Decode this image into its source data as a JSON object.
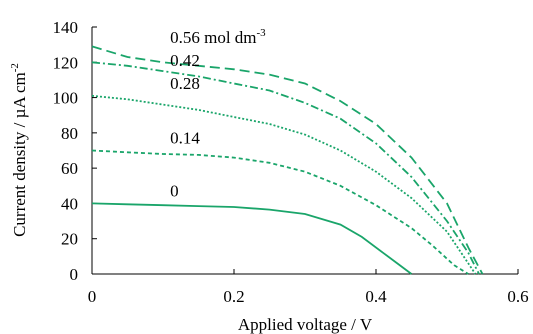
{
  "chart_data": {
    "type": "line",
    "xlabel": "Applied voltage / V",
    "ylabel": "Current density / µA cm",
    "ylabel_sup": "-2",
    "xlim": [
      0,
      0.6
    ],
    "ylim": [
      0,
      140
    ],
    "x_ticks": [
      "0",
      "0.2",
      "0.4",
      "0.6"
    ],
    "y_ticks": [
      "0",
      "20",
      "40",
      "60",
      "80",
      "100",
      "120",
      "140"
    ],
    "grid": false,
    "line_color": "#1aa56a",
    "series": [
      {
        "label": "0",
        "dash": "solid",
        "points": [
          [
            0,
            40
          ],
          [
            0.05,
            39.5
          ],
          [
            0.1,
            39
          ],
          [
            0.15,
            38.5
          ],
          [
            0.2,
            38
          ],
          [
            0.25,
            36.5
          ],
          [
            0.3,
            34
          ],
          [
            0.35,
            28
          ],
          [
            0.38,
            21
          ],
          [
            0.41,
            12
          ],
          [
            0.43,
            6
          ],
          [
            0.45,
            0
          ]
        ]
      },
      {
        "label": "0.14",
        "dash": "short",
        "points": [
          [
            0,
            70
          ],
          [
            0.05,
            69
          ],
          [
            0.1,
            68
          ],
          [
            0.15,
            67.5
          ],
          [
            0.2,
            66
          ],
          [
            0.25,
            63
          ],
          [
            0.3,
            58
          ],
          [
            0.35,
            50
          ],
          [
            0.4,
            39
          ],
          [
            0.45,
            26
          ],
          [
            0.48,
            16
          ],
          [
            0.51,
            5
          ],
          [
            0.53,
            0
          ]
        ]
      },
      {
        "label": "0.28",
        "dash": "dotted",
        "points": [
          [
            0,
            101
          ],
          [
            0.05,
            99
          ],
          [
            0.1,
            96
          ],
          [
            0.15,
            93
          ],
          [
            0.2,
            89
          ],
          [
            0.25,
            85
          ],
          [
            0.3,
            79
          ],
          [
            0.35,
            70
          ],
          [
            0.4,
            58
          ],
          [
            0.45,
            43
          ],
          [
            0.5,
            24
          ],
          [
            0.52,
            12
          ],
          [
            0.54,
            0
          ]
        ]
      },
      {
        "label": "0.42",
        "dash": "dashdot",
        "points": [
          [
            0,
            120
          ],
          [
            0.05,
            118
          ],
          [
            0.1,
            115
          ],
          [
            0.15,
            112
          ],
          [
            0.2,
            108
          ],
          [
            0.25,
            104
          ],
          [
            0.3,
            97
          ],
          [
            0.35,
            88
          ],
          [
            0.4,
            74
          ],
          [
            0.45,
            55
          ],
          [
            0.5,
            30
          ],
          [
            0.53,
            12
          ],
          [
            0.545,
            0
          ]
        ]
      },
      {
        "label": "0.56 mol dm",
        "label_sup": "-3",
        "dash": "longdash",
        "points": [
          [
            0,
            129
          ],
          [
            0.05,
            123
          ],
          [
            0.1,
            120
          ],
          [
            0.15,
            118
          ],
          [
            0.2,
            116
          ],
          [
            0.25,
            113
          ],
          [
            0.3,
            108
          ],
          [
            0.35,
            98
          ],
          [
            0.4,
            85
          ],
          [
            0.45,
            66
          ],
          [
            0.5,
            40
          ],
          [
            0.53,
            15
          ],
          [
            0.55,
            0
          ]
        ]
      }
    ]
  }
}
